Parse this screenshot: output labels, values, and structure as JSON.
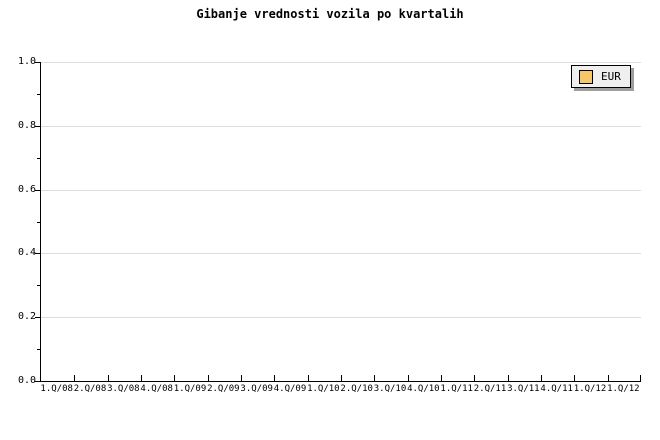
{
  "chart_data": {
    "type": "bar",
    "title": "Gibanje vrednosti vozila po kvartalih",
    "categories": [
      "1.Q/08",
      "2.Q/08",
      "3.Q/08",
      "4.Q/08",
      "1.Q/09",
      "2.Q/09",
      "3.Q/09",
      "4.Q/09",
      "1.Q/10",
      "2.Q/10",
      "3.Q/10",
      "4.Q/10",
      "1.Q/11",
      "2.Q/11",
      "3.Q/11",
      "4.Q/11",
      "1.Q/12",
      "1.Q/12"
    ],
    "series": [
      {
        "name": "EUR",
        "color": "#F7C56A",
        "values": []
      }
    ],
    "xlabel": "",
    "ylabel": "",
    "ylim": [
      0.0,
      1.0
    ],
    "y_major_ticks": [
      0.0,
      0.2,
      0.4,
      0.6,
      0.8,
      1.0
    ],
    "y_tick_labels": [
      "0.0",
      "0.2",
      "0.4",
      "0.6",
      "0.8",
      "1.0"
    ],
    "y_minor_step": 0.1,
    "grid": "horizontal-major",
    "legend": {
      "position": "top-right",
      "entries": [
        "EUR"
      ]
    },
    "colors": {
      "background": "#FFFFFF",
      "axis": "#000000",
      "gridline": "#DDDDDD",
      "text": "#000000",
      "legend_background": "#EFEFEF",
      "legend_border": "#000000",
      "legend_shadow": "#9E9E9E",
      "swatch_border": "#000000"
    }
  }
}
